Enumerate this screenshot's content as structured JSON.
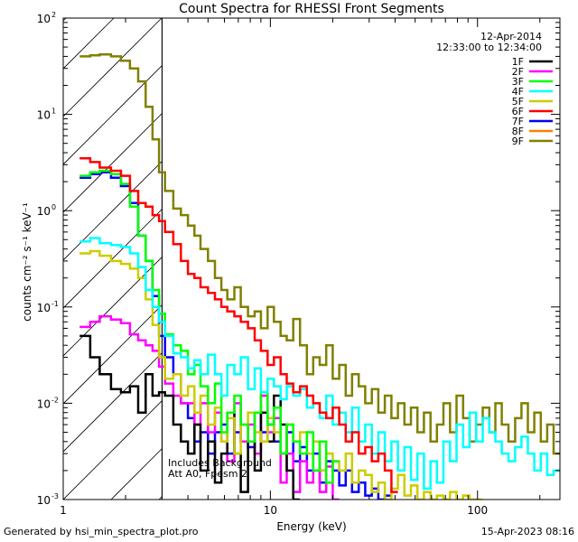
{
  "footer": {
    "generated_by": "Generated by hsi_min_spectra_plot.pro",
    "timestamp": "15-Apr-2023 08:16"
  },
  "chart_data": {
    "type": "line",
    "title": "Count Spectra for RHESSI Front Segments",
    "xlabel": "Energy (keV)",
    "ylabel": "counts cm⁻² s⁻¹ keV⁻¹",
    "xscale": "log",
    "yscale": "log",
    "xlim": [
      1,
      250
    ],
    "ylim": [
      0.001,
      100
    ],
    "x_tick_labels": [
      {
        "value": 1,
        "label": "1"
      },
      {
        "value": 10,
        "label": "10"
      },
      {
        "value": 100,
        "label": "100"
      }
    ],
    "y_tick_labels": [
      {
        "value": 0.001,
        "base": "10",
        "exp": "-3"
      },
      {
        "value": 0.01,
        "base": "10",
        "exp": "-2"
      },
      {
        "value": 0.1,
        "base": "10",
        "exp": "-1"
      },
      {
        "value": 1,
        "base": "10",
        "exp": "0"
      },
      {
        "value": 10,
        "base": "10",
        "exp": "1"
      },
      {
        "value": 100,
        "base": "10",
        "exp": "2"
      }
    ],
    "date": "12-Apr-2014",
    "time_range": "12:33:00 to 12:34:00",
    "annotations": [
      "Includes Background",
      "Att A0, Fpesm 2"
    ],
    "hatched_region_max_energy_keV": 3,
    "series": [
      {
        "name": "1F",
        "color": "#000000",
        "x": [
          1.2,
          1.35,
          1.5,
          1.7,
          1.9,
          2.1,
          2.3,
          2.5,
          2.7,
          2.9,
          3.1,
          3.4,
          3.7,
          4.0,
          4.3,
          4.6,
          5.0,
          5.4,
          5.8,
          6.2,
          6.7,
          7.2,
          7.8,
          8.4,
          9.0,
          9.7,
          10.4,
          11.2,
          12.0,
          12.9
        ],
        "y": [
          0.05,
          0.03,
          0.02,
          0.014,
          0.013,
          0.015,
          0.008,
          0.02,
          0.012,
          0.013,
          0.012,
          0.006,
          0.004,
          0.003,
          0.006,
          0.002,
          0.004,
          0.0015,
          0.003,
          0.008,
          0.003,
          0.0012,
          0.004,
          0.002,
          0.008,
          0.004,
          0.012,
          0.006,
          0.002,
          0.001
        ]
      },
      {
        "name": "2F",
        "color": "#ff00ff",
        "x": [
          1.2,
          1.35,
          1.5,
          1.7,
          1.9,
          2.1,
          2.3,
          2.5,
          2.7,
          2.9,
          3.1,
          3.4,
          3.7,
          4.0,
          4.3,
          4.6,
          5.0,
          5.4,
          5.8,
          6.2,
          6.7,
          7.2,
          7.8,
          8.4,
          9.0,
          9.7,
          10.4,
          11.2,
          12.0,
          12.9,
          13.9,
          15.0,
          16.1,
          17.3,
          18.6,
          20.0
        ],
        "y": [
          0.062,
          0.07,
          0.08,
          0.074,
          0.068,
          0.052,
          0.045,
          0.04,
          0.035,
          0.024,
          0.016,
          0.012,
          0.01,
          0.01,
          0.006,
          0.01,
          0.005,
          0.008,
          0.004,
          0.0025,
          0.01,
          0.004,
          0.006,
          0.003,
          0.012,
          0.005,
          0.007,
          0.0015,
          0.003,
          0.0012,
          0.0025,
          0.0015,
          0.002,
          0.0012,
          0.0022,
          0.001
        ]
      },
      {
        "name": "3F",
        "color": "#00ff00",
        "x": [
          1.2,
          1.35,
          1.5,
          1.7,
          1.9,
          2.1,
          2.3,
          2.5,
          2.7,
          2.9,
          3.1,
          3.4,
          3.7,
          4.0,
          4.3,
          4.6,
          5.0,
          5.4,
          5.8,
          6.2,
          6.7,
          7.2,
          7.8,
          8.4,
          9.0,
          9.7,
          10.4,
          11.2,
          12.0,
          12.9,
          13.9,
          15.0,
          16.1,
          17.3,
          18.6,
          20.0
        ],
        "y": [
          2.3,
          2.5,
          2.6,
          2.4,
          1.9,
          1.1,
          0.55,
          0.3,
          0.15,
          0.085,
          0.052,
          0.04,
          0.035,
          0.02,
          0.025,
          0.015,
          0.01,
          0.016,
          0.005,
          0.008,
          0.012,
          0.006,
          0.004,
          0.008,
          0.013,
          0.006,
          0.009,
          0.003,
          0.006,
          0.004,
          0.003,
          0.005,
          0.002,
          0.004,
          0.0015,
          0.0025
        ]
      },
      {
        "name": "4F",
        "color": "#00ffff",
        "x": [
          1.2,
          1.35,
          1.5,
          1.7,
          1.9,
          2.1,
          2.3,
          2.5,
          2.7,
          2.9,
          3.1,
          3.4,
          3.7,
          4.0,
          4.3,
          4.6,
          5.0,
          5.4,
          5.8,
          6.2,
          6.7,
          7.2,
          7.8,
          8.4,
          9.0,
          9.7,
          10.4,
          11.2,
          12.0,
          12.9,
          13.9,
          15.0,
          16.1,
          17.3,
          18.6,
          20.0,
          21.5,
          23.1,
          24.8,
          26.7,
          28.7,
          30.9,
          33.2,
          35.7,
          38.4,
          41.3,
          44.4,
          47.7,
          51.3,
          55.1,
          59.3,
          63.7,
          68.5,
          73.7,
          79.2,
          85.2,
          91.6,
          98.5,
          106,
          114,
          122,
          131,
          141,
          152,
          163,
          175,
          188,
          202,
          217,
          233
        ],
        "y": [
          0.48,
          0.52,
          0.46,
          0.44,
          0.42,
          0.36,
          0.26,
          0.15,
          0.1,
          0.07,
          0.05,
          0.033,
          0.03,
          0.023,
          0.028,
          0.02,
          0.032,
          0.02,
          0.012,
          0.025,
          0.02,
          0.03,
          0.014,
          0.023,
          0.013,
          0.018,
          0.015,
          0.011,
          0.015,
          0.012,
          0.014,
          0.009,
          0.01,
          0.007,
          0.012,
          0.006,
          0.008,
          0.005,
          0.009,
          0.004,
          0.006,
          0.003,
          0.005,
          0.0025,
          0.004,
          0.002,
          0.0035,
          0.0016,
          0.003,
          0.0013,
          0.0025,
          0.0015,
          0.004,
          0.0025,
          0.006,
          0.0035,
          0.008,
          0.004,
          0.007,
          0.005,
          0.004,
          0.003,
          0.0025,
          0.0035,
          0.0045,
          0.003,
          0.002,
          0.003,
          0.0018,
          0.002
        ]
      },
      {
        "name": "5F",
        "color": "#cccc00",
        "x": [
          1.2,
          1.35,
          1.5,
          1.7,
          1.9,
          2.1,
          2.3,
          2.5,
          2.7,
          2.9,
          3.1,
          3.4,
          3.7,
          4.0,
          4.3,
          4.6,
          5.0,
          5.4,
          5.8,
          6.2,
          6.7,
          7.2,
          7.8,
          8.4,
          9.0,
          9.7,
          10.4,
          11.2,
          12.0,
          12.9,
          13.9,
          15.0,
          16.1,
          17.3,
          18.6,
          20.0,
          21.5,
          23.1,
          24.8,
          26.7,
          28.7,
          30.9,
          33.2,
          35.7,
          38.4,
          41.3,
          44.4,
          47.7,
          51.3,
          55.1,
          59.3,
          63.7,
          68.5,
          73.7,
          79.2,
          85.2,
          91.6,
          98.5
        ],
        "y": [
          0.36,
          0.38,
          0.34,
          0.3,
          0.28,
          0.25,
          0.2,
          0.12,
          0.065,
          0.03,
          0.018,
          0.02,
          0.012,
          0.015,
          0.008,
          0.012,
          0.006,
          0.009,
          0.004,
          0.007,
          0.003,
          0.006,
          0.008,
          0.005,
          0.004,
          0.007,
          0.005,
          0.003,
          0.006,
          0.004,
          0.005,
          0.003,
          0.004,
          0.002,
          0.003,
          0.0025,
          0.002,
          0.003,
          0.0015,
          0.002,
          0.0018,
          0.0012,
          0.0015,
          0.001,
          0.0013,
          0.0018,
          0.0011,
          0.0014,
          0.001,
          0.0012,
          0.001,
          0.0011,
          0.001,
          0.0012,
          0.001,
          0.0011,
          0.001,
          0.001
        ]
      },
      {
        "name": "6F",
        "color": "#ff0000",
        "x": [
          1.2,
          1.35,
          1.5,
          1.7,
          1.9,
          2.1,
          2.3,
          2.5,
          2.7,
          2.9,
          3.1,
          3.4,
          3.7,
          4.0,
          4.3,
          4.6,
          5.0,
          5.4,
          5.8,
          6.2,
          6.7,
          7.2,
          7.8,
          8.4,
          9.0,
          9.7,
          10.4,
          11.2,
          12.0,
          12.9,
          13.9,
          15.0,
          16.1,
          17.3,
          18.6,
          20.0,
          21.5,
          23.1,
          24.8,
          26.7,
          28.7,
          30.9,
          33.2,
          35.7,
          38.4
        ],
        "y": [
          3.5,
          3.2,
          2.8,
          2.6,
          2.3,
          1.6,
          1.2,
          1.1,
          0.9,
          0.78,
          0.6,
          0.45,
          0.3,
          0.22,
          0.2,
          0.16,
          0.14,
          0.12,
          0.1,
          0.09,
          0.08,
          0.07,
          0.06,
          0.045,
          0.035,
          0.025,
          0.03,
          0.02,
          0.016,
          0.013,
          0.015,
          0.012,
          0.01,
          0.008,
          0.007,
          0.009,
          0.006,
          0.004,
          0.005,
          0.003,
          0.0035,
          0.0025,
          0.003,
          0.002,
          0.0012
        ]
      },
      {
        "name": "7F",
        "color": "#0000ff",
        "x": [
          1.2,
          1.35,
          1.5,
          1.7,
          1.9,
          2.1,
          2.3,
          2.5,
          2.7,
          2.9,
          3.1,
          3.4,
          3.7,
          4.0,
          4.3,
          4.6,
          5.0,
          5.4,
          5.8,
          6.2,
          6.7,
          7.2,
          7.8,
          8.4,
          9.0,
          9.7,
          10.4,
          11.2,
          12.0,
          12.9,
          13.9,
          15.0,
          16.1,
          17.3,
          18.6,
          20.0,
          21.5,
          23.1,
          24.8,
          26.7,
          28.7,
          30.9,
          33.2,
          35.7
        ],
        "y": [
          2.2,
          2.4,
          2.5,
          2.2,
          1.8,
          1.2,
          0.55,
          0.3,
          0.13,
          0.05,
          0.03,
          0.02,
          0.01,
          0.007,
          0.004,
          0.005,
          0.003,
          0.005,
          0.006,
          0.003,
          0.005,
          0.004,
          0.0035,
          0.008,
          0.005,
          0.006,
          0.004,
          0.003,
          0.005,
          0.0025,
          0.0035,
          0.002,
          0.003,
          0.0015,
          0.0025,
          0.002,
          0.0014,
          0.002,
          0.0012,
          0.0015,
          0.0011,
          0.0013,
          0.001,
          0.0011
        ]
      },
      {
        "name": "8F",
        "color": "#ff8000",
        "x": [],
        "y": []
      },
      {
        "name": "9F",
        "color": "#808000",
        "x": [
          1.2,
          1.35,
          1.5,
          1.7,
          1.9,
          2.1,
          2.3,
          2.5,
          2.7,
          2.9,
          3.1,
          3.4,
          3.7,
          4.0,
          4.3,
          4.6,
          5.0,
          5.4,
          5.8,
          6.2,
          6.7,
          7.2,
          7.8,
          8.4,
          9.0,
          9.7,
          10.4,
          11.2,
          12.0,
          12.9,
          13.9,
          15.0,
          16.1,
          17.3,
          18.6,
          20.0,
          21.5,
          23.1,
          24.8,
          26.7,
          28.7,
          30.9,
          33.2,
          35.7,
          38.4,
          41.3,
          44.4,
          47.7,
          51.3,
          55.1,
          59.3,
          63.7,
          68.5,
          73.7,
          79.2,
          85.2,
          91.6,
          98.5,
          106,
          114,
          122,
          131,
          141,
          152,
          163,
          175,
          188,
          202,
          217,
          233
        ],
        "y": [
          40,
          41,
          42,
          40,
          36,
          30,
          22,
          12,
          5.5,
          2.5,
          1.6,
          1.05,
          0.9,
          0.7,
          0.55,
          0.4,
          0.3,
          0.2,
          0.15,
          0.12,
          0.16,
          0.1,
          0.08,
          0.09,
          0.06,
          0.1,
          0.07,
          0.05,
          0.045,
          0.075,
          0.04,
          0.02,
          0.03,
          0.025,
          0.04,
          0.018,
          0.025,
          0.012,
          0.02,
          0.015,
          0.01,
          0.014,
          0.008,
          0.012,
          0.007,
          0.01,
          0.006,
          0.009,
          0.005,
          0.008,
          0.004,
          0.006,
          0.01,
          0.005,
          0.012,
          0.007,
          0.004,
          0.006,
          0.009,
          0.005,
          0.01,
          0.006,
          0.004,
          0.007,
          0.01,
          0.005,
          0.008,
          0.004,
          0.006,
          0.003
        ]
      }
    ]
  }
}
